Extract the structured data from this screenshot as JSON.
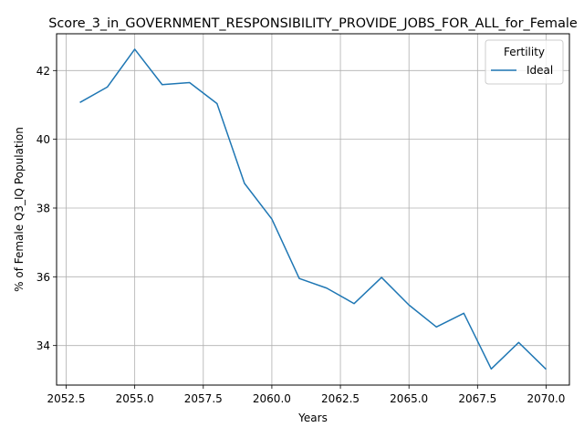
{
  "chart_data": {
    "type": "line",
    "title": "Score_3_in_GOVERNMENT_RESPONSIBILITY_PROVIDE_JOBS_FOR_ALL_for_Female",
    "xlabel": "Years",
    "ylabel": "% of Female Q3_IQ Population",
    "xlim": [
      2052.15,
      2070.85
    ],
    "ylim": [
      32.85,
      43.07
    ],
    "xticks": [
      2052.5,
      2055.0,
      2057.5,
      2060.0,
      2062.5,
      2065.0,
      2067.5,
      2070.0
    ],
    "xtick_labels": [
      "2052.5",
      "2055.0",
      "2057.5",
      "2060.0",
      "2062.5",
      "2065.0",
      "2067.5",
      "2070.0"
    ],
    "yticks": [
      34,
      36,
      38,
      40,
      42
    ],
    "ytick_labels": [
      "34",
      "36",
      "38",
      "40",
      "42"
    ],
    "grid": true,
    "legend": {
      "title": "Fertility",
      "placement": "top-right"
    },
    "x": [
      2053,
      2054,
      2055,
      2056,
      2057,
      2058,
      2059,
      2060,
      2061,
      2062,
      2063,
      2064,
      2065,
      2066,
      2067,
      2068,
      2069,
      2070
    ],
    "series": [
      {
        "name": "Ideal",
        "color": "#1f77b4",
        "values": [
          41.07,
          41.52,
          42.62,
          41.59,
          41.65,
          41.04,
          38.72,
          37.68,
          35.95,
          35.67,
          35.22,
          35.98,
          35.18,
          34.54,
          34.94,
          33.32,
          34.09,
          33.31
        ]
      }
    ]
  }
}
